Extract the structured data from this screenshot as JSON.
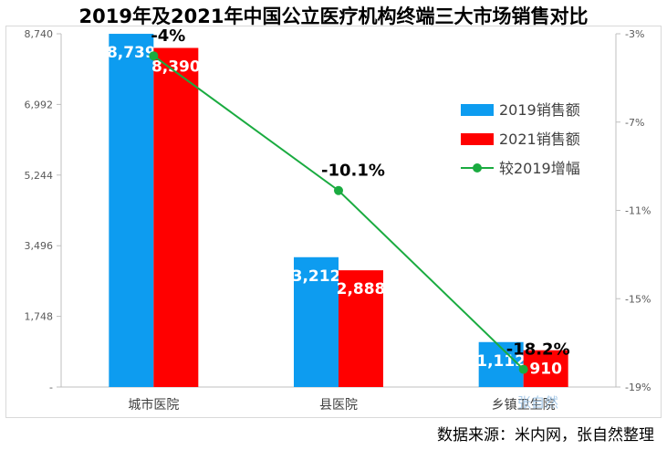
{
  "chart_data": {
    "type": "bar",
    "title": "2019年及2021年中国公立医疗机构终端三大市场销售对比",
    "categories": [
      "城市医院",
      "县医院",
      "乡镇卫生院"
    ],
    "series": [
      {
        "name": "2019销售额",
        "type": "bar",
        "axis": "left",
        "color": "#0d9cf0",
        "values": [
          8739,
          3212,
          1112
        ],
        "labels": [
          "8,739",
          "3,212",
          "1,112"
        ]
      },
      {
        "name": "2021销售额",
        "type": "bar",
        "axis": "left",
        "color": "#ff0000",
        "values": [
          8390,
          2888,
          910
        ],
        "labels": [
          "8,390",
          "2,888",
          "910"
        ]
      },
      {
        "name": "较2019增幅",
        "type": "line",
        "axis": "right",
        "color": "#1aab40",
        "values": [
          -4,
          -10.1,
          -18.2
        ],
        "labels": [
          "-4%",
          "-10.1%",
          "-18.2%"
        ]
      }
    ],
    "y_left": {
      "min": 0,
      "max": 8740,
      "ticks": [
        0,
        1748,
        3496,
        5244,
        6992,
        8740
      ],
      "tick_labels": [
        "-",
        "1,748",
        "3,496",
        "5,244",
        "6,992",
        "8,740"
      ]
    },
    "y_right": {
      "min": -19,
      "max": -3,
      "ticks": [
        -19,
        -15,
        -11,
        -7,
        -3
      ],
      "tick_labels": [
        "-19%",
        "-15%",
        "-11%",
        "-7%",
        "-3%"
      ]
    },
    "legend_position": "right",
    "grid": false
  },
  "source": "数据来源：米内网，张自然整理",
  "watermark": "张自然"
}
